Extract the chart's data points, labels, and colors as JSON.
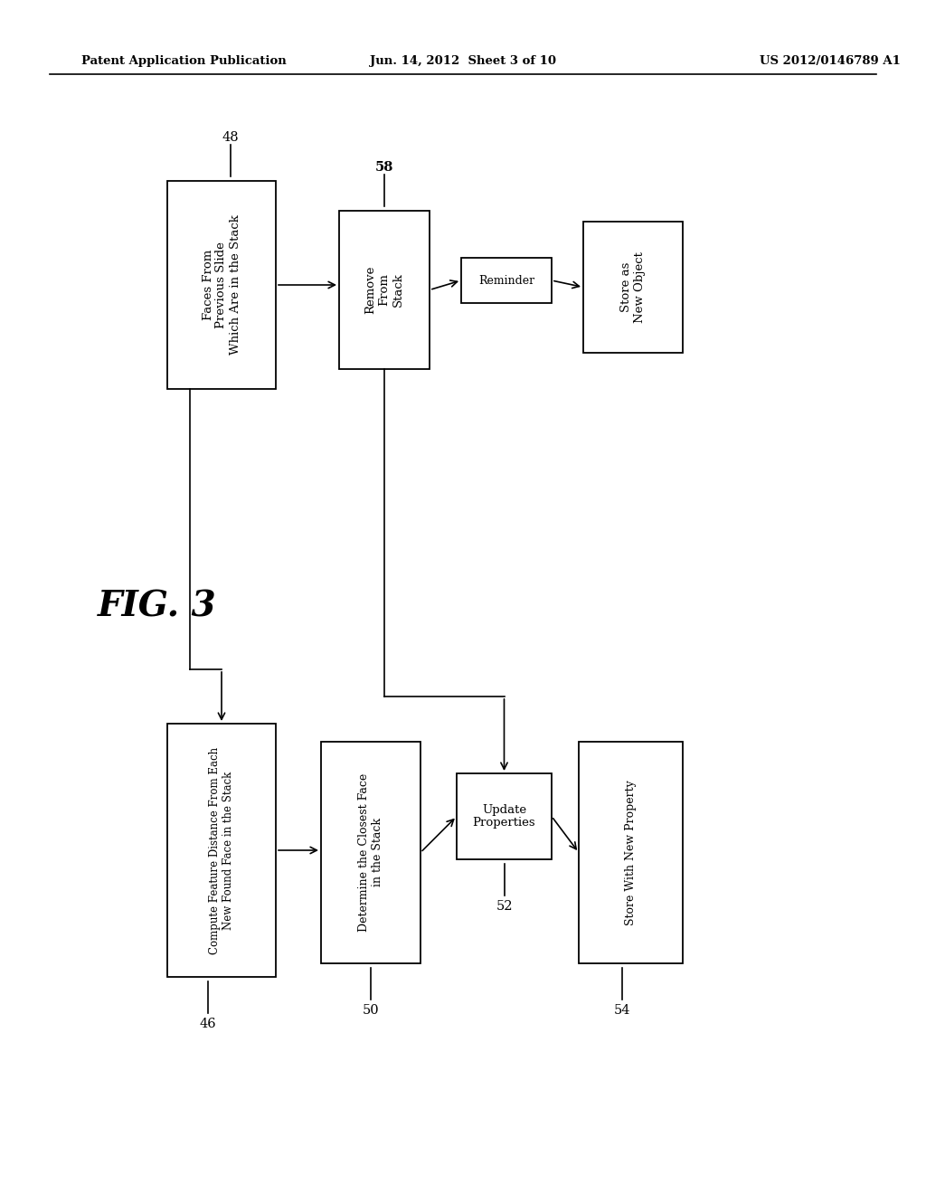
{
  "title_left": "Patent Application Publication",
  "title_center": "Jun. 14, 2012  Sheet 3 of 10",
  "title_right": "US 2012/0146789 A1",
  "fig_label": "FIG. 3",
  "background_color": "#ffffff",
  "fig_width": 10.24,
  "fig_height": 13.2,
  "dpi": 100
}
